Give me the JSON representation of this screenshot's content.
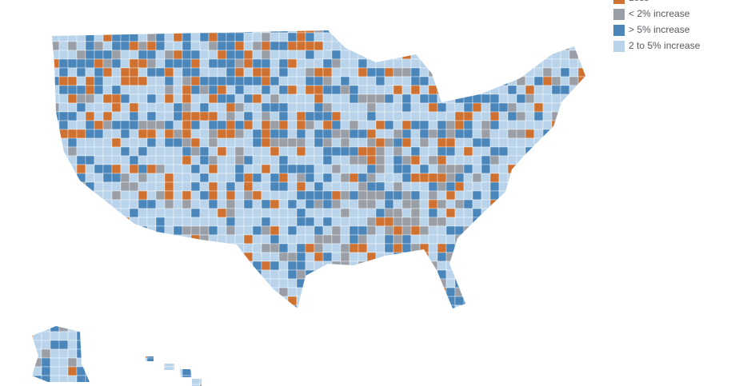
{
  "legend": {
    "items": [
      {
        "label": "Loss",
        "color": "#cf7130"
      },
      {
        "label": "< 2% increase",
        "color": "#9a9ea6"
      },
      {
        "label": "> 5% increase",
        "color": "#4a86ba"
      },
      {
        "label": "2 to 5% increase",
        "color": "#b9d4ea"
      }
    ]
  }
}
